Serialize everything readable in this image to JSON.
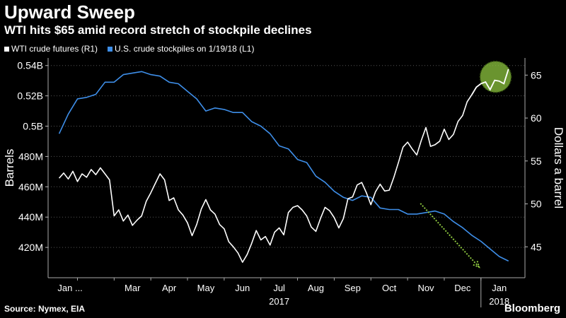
{
  "header": {
    "title": "Upward Sweep",
    "subtitle": "WTI hits $65 amid record stretch of stockpile declines"
  },
  "footer": {
    "source": "Source: Nymex, EIA",
    "brand": "Bloomberg"
  },
  "colors": {
    "wti": "#ffffff",
    "stockpiles": "#3e8ee8",
    "highlight": "#8dc63f",
    "background": "#000000"
  },
  "chart_data": {
    "type": "line",
    "title": "Upward Sweep",
    "subtitle": "WTI hits $65 amid record stretch of stockpile declines",
    "legend": [
      {
        "label": "WTI crude futures (R1)",
        "color": "#ffffff"
      },
      {
        "label": "U.S. crude stockpiles  on 1/19/18 (L1)",
        "color": "#3e8ee8"
      }
    ],
    "ylabel_left": "Barrels",
    "ylabel_right": "Dollars a barrel",
    "left_axis": {
      "ylim": [
        400,
        545
      ],
      "ticks": [
        420,
        440,
        460,
        480,
        500,
        520,
        540
      ],
      "tick_labels": [
        "420M",
        "440M",
        "460M",
        "480M",
        "0.5B",
        "0.52B",
        "0.54B"
      ]
    },
    "right_axis": {
      "ylim": [
        41.4,
        67
      ],
      "ticks": [
        45,
        50,
        55,
        60,
        65
      ],
      "tick_labels": [
        "45",
        "50",
        "55",
        "60",
        "65"
      ]
    },
    "x_axis": {
      "months": [
        "Jan ...",
        "Mar",
        "Apr",
        "May",
        "Jun",
        "Jul",
        "Aug",
        "Sep",
        "Oct",
        "Nov",
        "Dec",
        "Jan"
      ],
      "month_positions": [
        0.3,
        2.0,
        3.0,
        4.0,
        5.0,
        6.0,
        7.0,
        8.0,
        9.0,
        10.0,
        11.0,
        12.0
      ],
      "years": [
        "2017",
        "2018"
      ],
      "year_positions": [
        6.0,
        12.0
      ],
      "xlim": [
        -0.3,
        12.7
      ]
    },
    "series": [
      {
        "name": "U.S. crude stockpiles  on 1/19/18 (L1)",
        "axis": "left",
        "color": "#3e8ee8",
        "x": [
          0.0,
          0.25,
          0.5,
          0.75,
          1.0,
          1.25,
          1.5,
          1.75,
          2.0,
          2.25,
          2.5,
          2.75,
          3.0,
          3.25,
          3.5,
          3.75,
          4.0,
          4.25,
          4.5,
          4.75,
          5.0,
          5.25,
          5.5,
          5.75,
          6.0,
          6.25,
          6.5,
          6.75,
          7.0,
          7.25,
          7.5,
          7.75,
          8.0,
          8.25,
          8.5,
          8.75,
          9.0,
          9.25,
          9.5,
          9.75,
          10.0,
          10.25,
          10.5,
          10.75,
          11.0,
          11.25,
          11.5,
          11.75,
          12.0,
          12.25
        ],
        "values": [
          495,
          508,
          518,
          519,
          521,
          529,
          529,
          534,
          535,
          536,
          534,
          533,
          529,
          528,
          523,
          518,
          510,
          512,
          511,
          509,
          509,
          503,
          500,
          495,
          487,
          485,
          478,
          476,
          467,
          463,
          457,
          453,
          451,
          454,
          453,
          446,
          445,
          445,
          442,
          442,
          443,
          444,
          442,
          437,
          433,
          428,
          424,
          419,
          414,
          411
        ]
      },
      {
        "name": "WTI crude futures (R1)",
        "axis": "right",
        "color": "#ffffff",
        "x": [
          0.0,
          0.125,
          0.25,
          0.375,
          0.5,
          0.625,
          0.75,
          0.875,
          1.0,
          1.125,
          1.25,
          1.375,
          1.5,
          1.625,
          1.75,
          1.875,
          2.0,
          2.125,
          2.25,
          2.375,
          2.5,
          2.625,
          2.75,
          2.875,
          3.0,
          3.125,
          3.25,
          3.375,
          3.5,
          3.625,
          3.75,
          3.875,
          4.0,
          4.125,
          4.25,
          4.375,
          4.5,
          4.625,
          4.75,
          4.875,
          5.0,
          5.125,
          5.25,
          5.375,
          5.5,
          5.625,
          5.75,
          5.875,
          6.0,
          6.125,
          6.25,
          6.375,
          6.5,
          6.625,
          6.75,
          6.875,
          7.0,
          7.125,
          7.25,
          7.375,
          7.5,
          7.625,
          7.75,
          7.875,
          8.0,
          8.125,
          8.25,
          8.375,
          8.5,
          8.625,
          8.75,
          8.875,
          9.0,
          9.125,
          9.25,
          9.375,
          9.5,
          9.625,
          9.75,
          9.875,
          10.0,
          10.125,
          10.25,
          10.375,
          10.5,
          10.625,
          10.75,
          10.875,
          11.0,
          11.125,
          11.25,
          11.375,
          11.5,
          11.625,
          11.75,
          11.875,
          12.0,
          12.125,
          12.25
        ],
        "values": [
          53.0,
          53.6,
          52.9,
          53.8,
          52.6,
          53.5,
          53.1,
          54.0,
          53.4,
          54.2,
          53.5,
          52.8,
          48.6,
          49.3,
          48.0,
          48.7,
          47.5,
          48.1,
          48.6,
          50.3,
          51.3,
          52.4,
          53.5,
          52.8,
          50.4,
          50.7,
          49.3,
          48.7,
          47.8,
          46.3,
          47.6,
          49.4,
          50.5,
          49.3,
          48.8,
          47.6,
          47.1,
          45.6,
          45.0,
          44.3,
          43.2,
          44.1,
          45.4,
          46.9,
          45.8,
          46.2,
          45.2,
          46.7,
          47.2,
          46.4,
          49.0,
          49.6,
          49.8,
          49.3,
          48.6,
          47.3,
          46.8,
          48.3,
          49.6,
          49.2,
          48.4,
          47.2,
          48.3,
          50.6,
          50.8,
          52.2,
          52.5,
          51.3,
          49.9,
          51.4,
          52.3,
          51.5,
          51.6,
          53.1,
          54.8,
          56.6,
          57.2,
          56.4,
          55.7,
          57.4,
          58.9,
          56.7,
          56.9,
          57.3,
          58.7,
          57.5,
          58.1,
          59.6,
          60.3,
          61.9,
          62.7,
          63.6,
          64.0,
          64.2,
          63.3,
          64.4,
          64.3,
          64.0,
          65.7
        ]
      }
    ],
    "annotations": [
      {
        "type": "circle-highlight",
        "x": 11.9,
        "axis": "right",
        "y": 64.8
      },
      {
        "type": "dotted-arrow",
        "from": {
          "x": 9.85,
          "y": 449
        },
        "to": {
          "x": 11.45,
          "y": 407
        },
        "axis": "left"
      }
    ],
    "grid": true
  }
}
